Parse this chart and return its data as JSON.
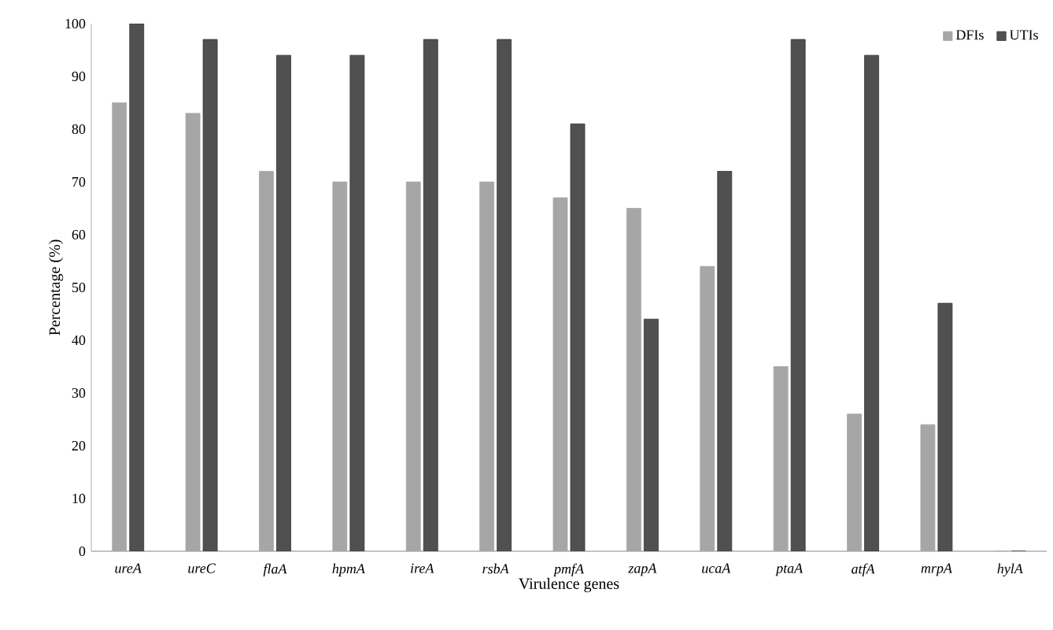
{
  "chart_data": {
    "type": "bar",
    "xlabel": "Virulence genes",
    "ylabel": "Percentage (%)",
    "categories": [
      "ureA",
      "ureC",
      "flaA",
      "hpmA",
      "ireA",
      "rsbA",
      "pmfA",
      "zapA",
      "ucaA",
      "ptaA",
      "atfA",
      "mrpA",
      "hylA"
    ],
    "series": [
      {
        "name": "DFIs",
        "color": "#a6a6a6",
        "values": [
          85,
          83,
          72,
          70,
          70,
          70,
          67,
          65,
          54,
          35,
          26,
          24,
          0
        ]
      },
      {
        "name": "UTIs",
        "color": "#505050",
        "values": [
          100,
          97,
          94,
          94,
          97,
          97,
          81,
          44,
          72,
          97,
          94,
          47,
          0
        ]
      }
    ],
    "ylim": [
      0,
      100
    ],
    "yticks": [
      0,
      10,
      20,
      30,
      40,
      50,
      60,
      70,
      80,
      90,
      100
    ],
    "grid": false,
    "legend": "top right"
  }
}
